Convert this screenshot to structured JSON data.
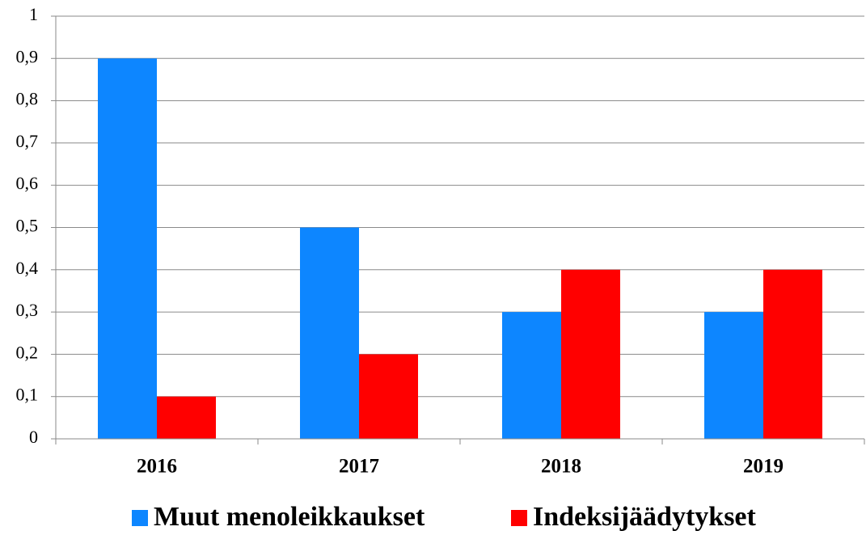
{
  "chart_data": {
    "type": "bar",
    "categories": [
      "2016",
      "2017",
      "2018",
      "2019"
    ],
    "series": [
      {
        "name": "Muut menoleikkaukset",
        "color": "#0d86ff",
        "values": [
          0.9,
          0.5,
          0.3,
          0.3
        ]
      },
      {
        "name": "Indeksijäädytykset",
        "color": "#ff0000",
        "values": [
          0.1,
          0.2,
          0.4,
          0.4
        ]
      }
    ],
    "ylim": [
      0,
      1
    ],
    "yticks": [
      0,
      {
        "value": 0.1,
        "label": "0,1"
      },
      {
        "value": 0.2,
        "label": "0,2"
      },
      {
        "value": 0.3,
        "label": "0,3"
      },
      {
        "value": 0.4,
        "label": "0,4"
      },
      {
        "value": 0.5,
        "label": "0,5"
      },
      {
        "value": 0.6,
        "label": "0,6"
      },
      {
        "value": 0.7,
        "label": "0,7"
      },
      {
        "value": 0.8,
        "label": "0,8"
      },
      {
        "value": 0.9,
        "label": "0,9"
      },
      1
    ],
    "grid": true
  }
}
